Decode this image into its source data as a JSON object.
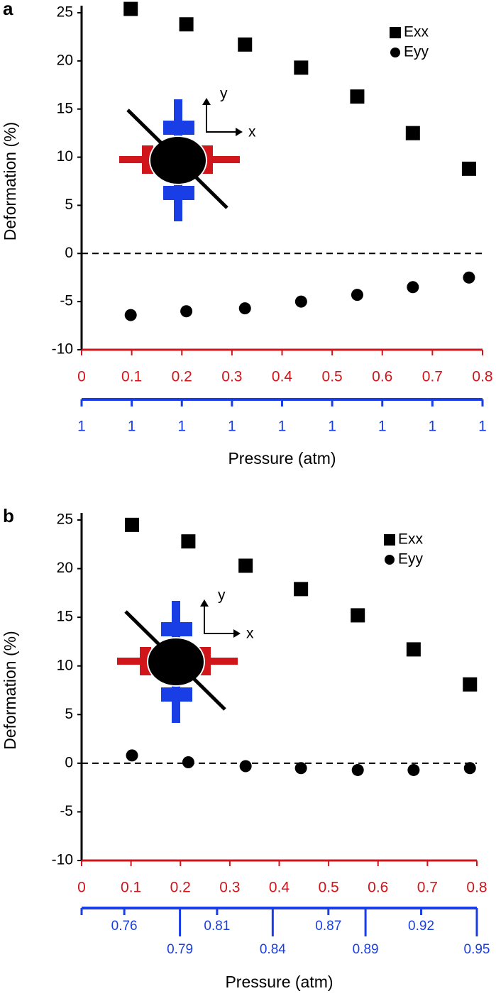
{
  "chart_data": [
    {
      "type": "scatter",
      "panel": "a",
      "y_label": "Deformation (%)",
      "x_label": "Pressure (atm)",
      "xlim": [
        0,
        0.8
      ],
      "xticks": [
        0,
        0.1,
        0.2,
        0.3,
        0.4,
        0.5,
        0.6,
        0.7,
        0.8
      ],
      "xcolor": "#d0161b",
      "x2lim": [
        0,
        0.8
      ],
      "x2ticks": [
        {
          "value": 0,
          "label": "1"
        },
        {
          "value": 0.1,
          "label": "1"
        },
        {
          "value": 0.2,
          "label": "1"
        },
        {
          "value": 0.3,
          "label": "1"
        },
        {
          "value": 0.4,
          "label": "1"
        },
        {
          "value": 0.5,
          "label": "1"
        },
        {
          "value": 0.6,
          "label": "1"
        },
        {
          "value": 0.7,
          "label": "1"
        },
        {
          "value": 0.8,
          "label": "1"
        }
      ],
      "x2color": "#1a3ee6",
      "ylim": [
        -10,
        25
      ],
      "yticks": [
        -10,
        -5,
        0,
        5,
        10,
        15,
        20,
        25
      ],
      "hline": 0,
      "legend": "upper right",
      "annotations": [
        "y",
        "x"
      ],
      "x": [
        0.098,
        0.209,
        0.326,
        0.438,
        0.55,
        0.661,
        0.773
      ],
      "series": [
        {
          "name": "Exx",
          "marker": "square",
          "color": "#000000",
          "values": [
            25.4,
            23.8,
            21.7,
            19.3,
            16.3,
            12.5,
            8.8
          ]
        },
        {
          "name": "Eyy",
          "marker": "circle",
          "color": "#000000",
          "values": [
            -6.4,
            -6.0,
            -5.7,
            -5.0,
            -4.3,
            -3.5,
            -2.5
          ]
        }
      ]
    },
    {
      "type": "scatter",
      "panel": "b",
      "y_label": "Deformation (%)",
      "x_label": "Pressure (atm)",
      "xlim": [
        0,
        0.8
      ],
      "xticks": [
        0,
        0.1,
        0.2,
        0.3,
        0.4,
        0.5,
        0.6,
        0.7,
        0.8
      ],
      "xcolor": "#d0161b",
      "x2lim": [
        0.737,
        0.95
      ],
      "x2ticks": [
        0.76,
        0.79,
        0.81,
        0.84,
        0.87,
        0.89,
        0.92,
        0.95
      ],
      "x2color": "#1a3ee6",
      "ylim": [
        -10,
        25
      ],
      "yticks": [
        -10,
        -5,
        0,
        5,
        10,
        15,
        20,
        25
      ],
      "hline": 0,
      "legend": "upper right",
      "annotations": [
        "y",
        "x"
      ],
      "x": [
        0.102,
        0.216,
        0.332,
        0.444,
        0.559,
        0.672,
        0.786
      ],
      "series": [
        {
          "name": "Exx",
          "marker": "square",
          "color": "#000000",
          "values": [
            24.5,
            22.8,
            20.3,
            17.9,
            15.2,
            11.7,
            8.1
          ]
        },
        {
          "name": "Eyy",
          "marker": "circle",
          "color": "#000000",
          "values": [
            0.8,
            0.1,
            -0.3,
            -0.5,
            -0.7,
            -0.7,
            -0.5
          ]
        }
      ]
    }
  ]
}
